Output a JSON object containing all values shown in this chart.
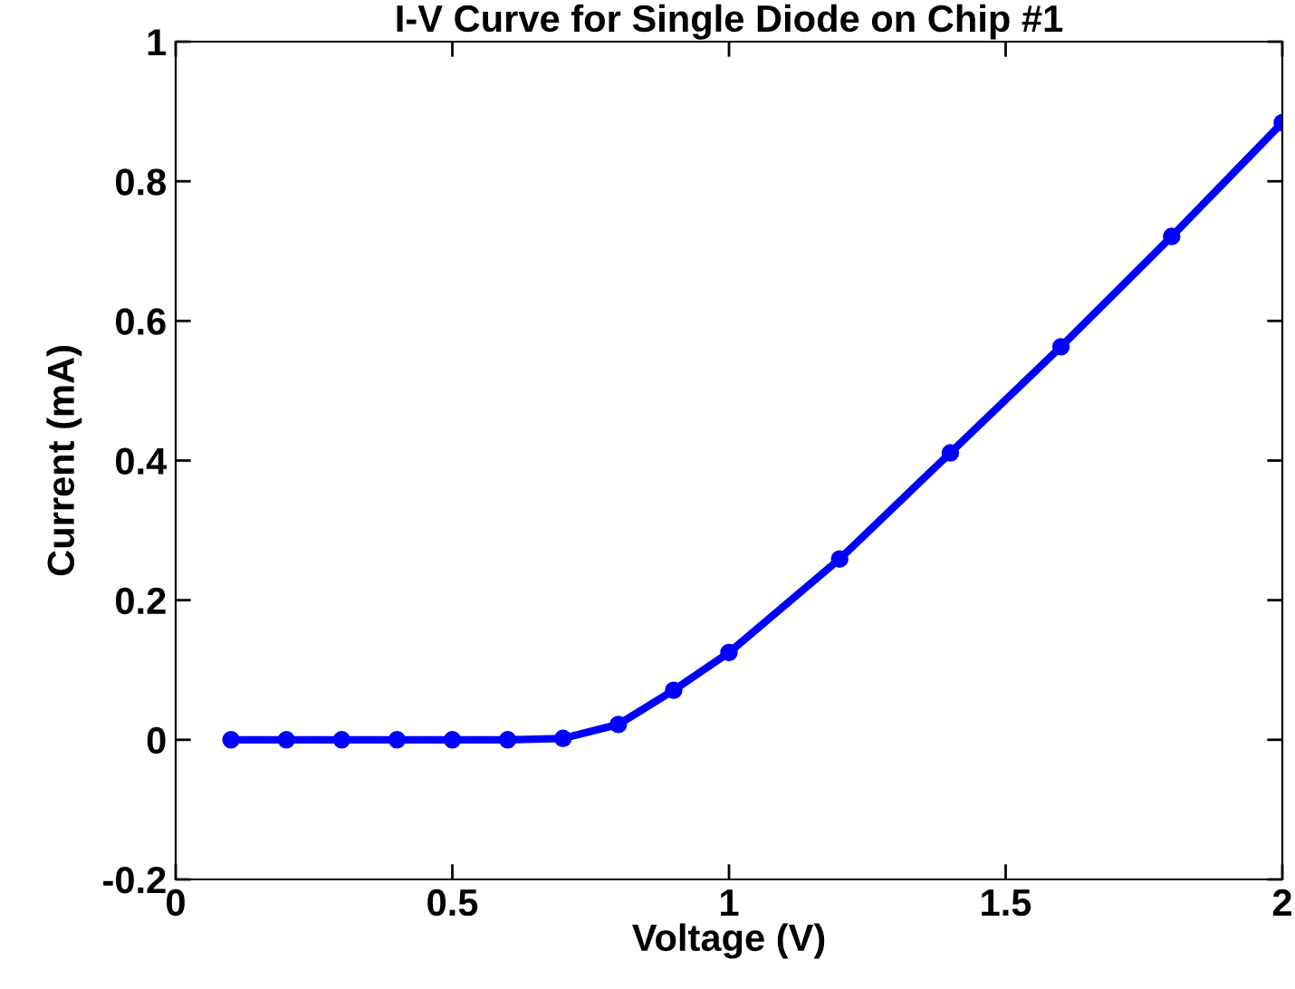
{
  "chart_data": {
    "type": "line",
    "title": "I-V Curve for Single Diode on Chip #1",
    "xlabel": "Voltage (V)",
    "ylabel": "Current (mA)",
    "x": [
      0.1,
      0.2,
      0.3,
      0.4,
      0.5,
      0.6,
      0.7,
      0.8,
      0.9,
      1.0,
      1.2,
      1.4,
      1.6,
      1.8,
      2.0
    ],
    "series": [
      {
        "color": "#0000ff",
        "values": [
          0,
          0,
          0,
          0,
          0,
          0,
          0.002,
          0.022,
          0.071,
          0.125,
          0.259,
          0.411,
          0.563,
          0.721,
          0.884
        ]
      }
    ],
    "xlim": [
      0,
      2
    ],
    "ylim": [
      -0.2,
      1
    ],
    "xticks": [
      0,
      0.5,
      1,
      1.5,
      2
    ],
    "yticks": [
      -0.2,
      0,
      0.2,
      0.4,
      0.6,
      0.8,
      1
    ],
    "grid": false,
    "legend": false,
    "marker": "circle",
    "line_style": "solid"
  }
}
